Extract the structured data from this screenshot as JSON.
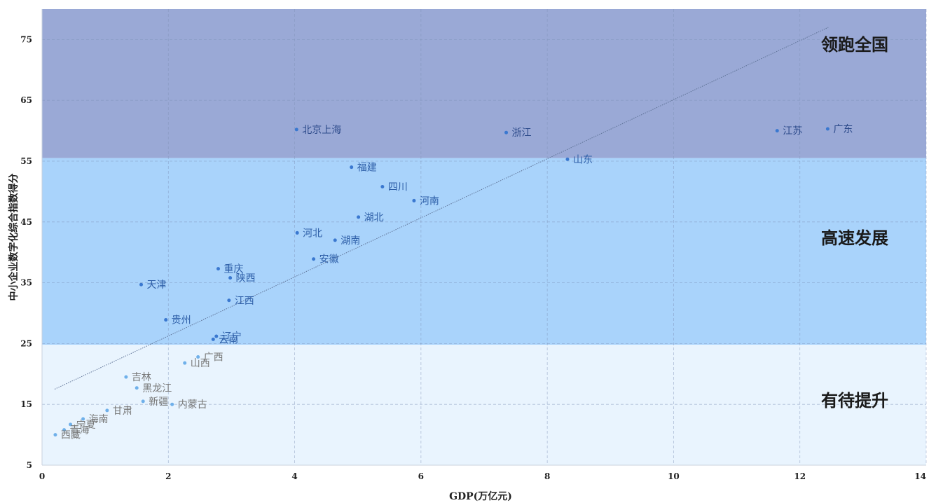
{
  "chart_data": {
    "type": "scatter",
    "title": "",
    "xlabel": "GDP(万亿元)",
    "ylabel": "中小企业数字化综合指数得分",
    "xlim": [
      0,
      14
    ],
    "ylim": [
      5,
      80
    ],
    "xticks": [
      0,
      2,
      4,
      6,
      8,
      10,
      12,
      14
    ],
    "yticks": [
      5,
      15,
      25,
      35,
      45,
      55,
      65,
      75
    ],
    "grid": true,
    "bands": [
      {
        "label": "领跑全国",
        "y0": 55.5,
        "y1": 80,
        "color": "#9aa9d6"
      },
      {
        "label": "高速发展",
        "y0": 24.8,
        "y1": 55.5,
        "color": "#a9d3fb"
      },
      {
        "label": "有待提升",
        "y0": 5,
        "y1": 24.8,
        "color": "#e9f4fe"
      }
    ],
    "trendline": {
      "x0": 0.2,
      "y0": 17.5,
      "x1": 12.45,
      "y1": 77
    },
    "points": [
      {
        "name": "北京上海",
        "x": 4.03,
        "y": 60.2
      },
      {
        "name": "浙江",
        "x": 7.35,
        "y": 59.7
      },
      {
        "name": "江苏",
        "x": 11.64,
        "y": 60.0
      },
      {
        "name": "广东",
        "x": 12.44,
        "y": 60.3
      },
      {
        "name": "山东",
        "x": 8.32,
        "y": 55.3
      },
      {
        "name": "福建",
        "x": 4.9,
        "y": 54.0
      },
      {
        "name": "四川",
        "x": 5.39,
        "y": 50.8
      },
      {
        "name": "河南",
        "x": 5.89,
        "y": 48.5
      },
      {
        "name": "湖北",
        "x": 5.01,
        "y": 45.8
      },
      {
        "name": "河北",
        "x": 4.04,
        "y": 43.2
      },
      {
        "name": "湖南",
        "x": 4.64,
        "y": 42.0
      },
      {
        "name": "安徽",
        "x": 4.3,
        "y": 38.9
      },
      {
        "name": "重庆",
        "x": 2.79,
        "y": 37.3
      },
      {
        "name": "陕西",
        "x": 2.98,
        "y": 35.8
      },
      {
        "name": "天津",
        "x": 1.57,
        "y": 34.7
      },
      {
        "name": "江西",
        "x": 2.96,
        "y": 32.1
      },
      {
        "name": "贵州",
        "x": 1.96,
        "y": 28.9
      },
      {
        "name": "辽宁",
        "x": 2.76,
        "y": 26.2
      },
      {
        "name": "云南",
        "x": 2.71,
        "y": 25.7
      },
      {
        "name": "广西",
        "x": 2.47,
        "y": 22.8
      },
      {
        "name": "山西",
        "x": 2.26,
        "y": 21.8
      },
      {
        "name": "吉林",
        "x": 1.33,
        "y": 19.5
      },
      {
        "name": "黑龙江",
        "x": 1.5,
        "y": 17.7
      },
      {
        "name": "新疆",
        "x": 1.6,
        "y": 15.5
      },
      {
        "name": "内蒙古",
        "x": 2.06,
        "y": 15.0
      },
      {
        "name": "甘肃",
        "x": 1.03,
        "y": 14.0
      },
      {
        "name": "海南",
        "x": 0.65,
        "y": 12.6
      },
      {
        "name": "宁夏",
        "x": 0.45,
        "y": 11.7
      },
      {
        "name": "青海",
        "x": 0.35,
        "y": 10.8
      },
      {
        "name": "西藏",
        "x": 0.21,
        "y": 10.0
      }
    ]
  }
}
